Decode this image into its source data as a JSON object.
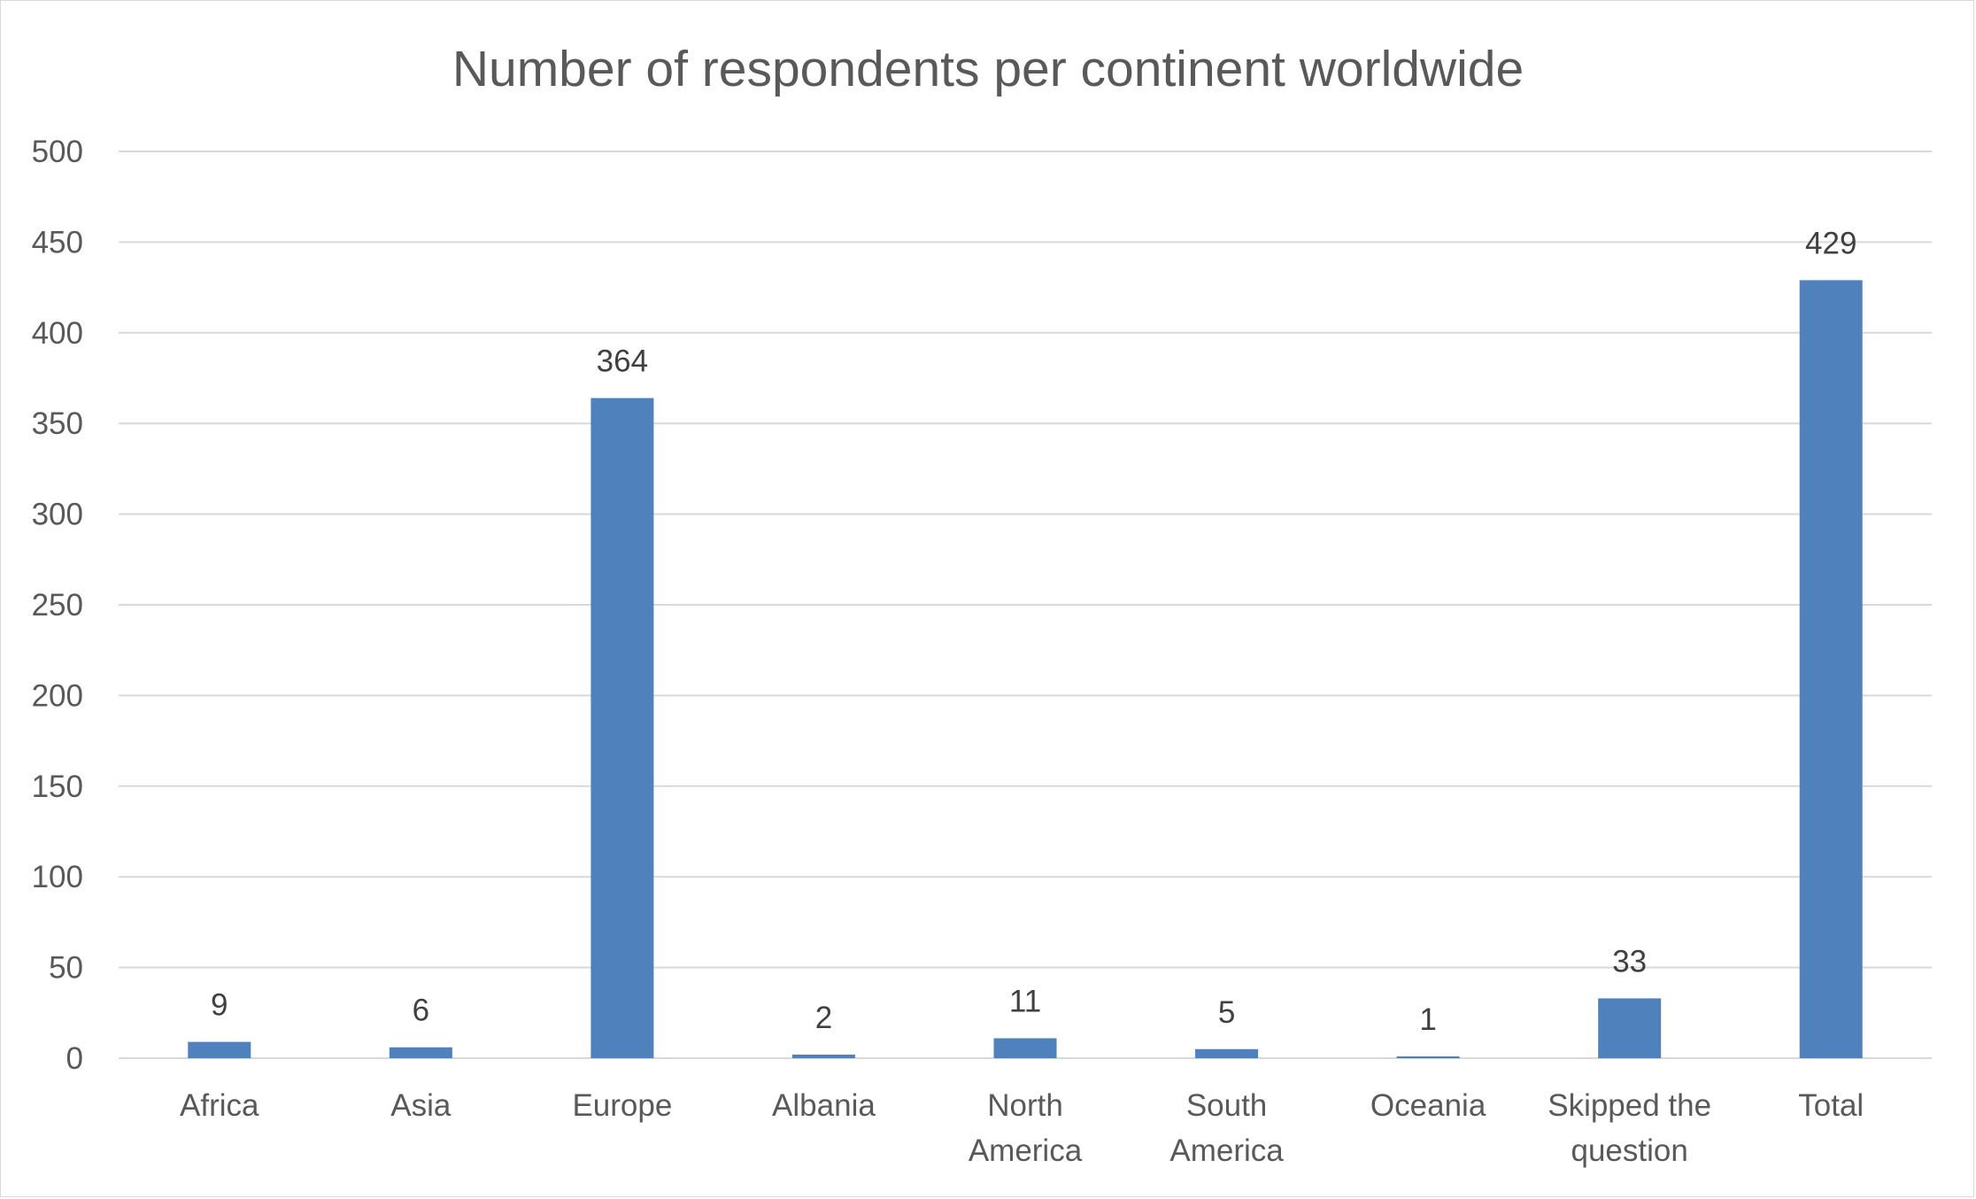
{
  "chart_data": {
    "type": "bar",
    "title": "Number of respondents per continent worldwide",
    "xlabel": "",
    "ylabel": "",
    "categories": [
      "Africa",
      "Asia",
      "Europe",
      "Albania",
      "North America",
      "South America",
      "Oceania",
      "Skipped the question",
      "Total"
    ],
    "category_lines": [
      [
        "Africa"
      ],
      [
        "Asia"
      ],
      [
        "Europe"
      ],
      [
        "Albania"
      ],
      [
        "North",
        "America"
      ],
      [
        "South",
        "America"
      ],
      [
        "Oceania"
      ],
      [
        "Skipped the",
        "question"
      ],
      [
        "Total"
      ]
    ],
    "values": [
      9,
      6,
      364,
      2,
      11,
      5,
      1,
      33,
      429
    ],
    "ylim": [
      0,
      500
    ],
    "yticks": [
      0,
      50,
      100,
      150,
      200,
      250,
      300,
      350,
      400,
      450,
      500
    ],
    "grid": true,
    "legend": "none",
    "data_labels": true,
    "bar_color": "#4f81bd",
    "grid_color": "#d9d9d9",
    "text_color": "#595959"
  }
}
